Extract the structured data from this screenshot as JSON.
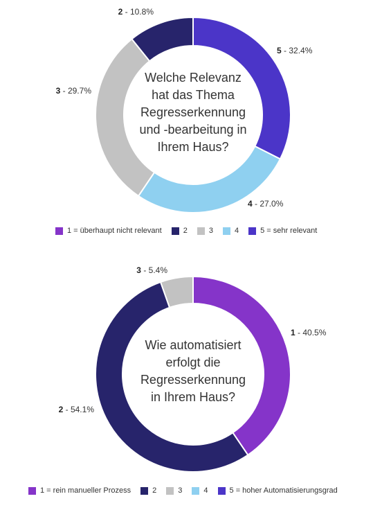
{
  "chart_data": [
    {
      "type": "pie",
      "style": "donut",
      "title": "Welche Relevanz hat das Thema Regresserkennung und -bearbeitung in Ihrem Haus?",
      "title_lines": [
        "Welche Relevanz",
        "hat das Thema",
        "Regresserkennung",
        "und -bearbeitung in",
        "Ihrem Haus?"
      ],
      "slices": [
        {
          "label": "5",
          "value": 32.4,
          "display": "32.4%",
          "color": "#4b35c8"
        },
        {
          "label": "4",
          "value": 27.0,
          "display": "27.0%",
          "color": "#8fd0f0"
        },
        {
          "label": "3",
          "value": 29.7,
          "display": "29.7%",
          "color": "#c2c2c2"
        },
        {
          "label": "2",
          "value": 10.8,
          "display": "10.8%",
          "color": "#27246b"
        }
      ],
      "legend": [
        {
          "label": "1 = überhaupt nicht relevant",
          "color": "#8534c9"
        },
        {
          "label": "2",
          "color": "#27246b"
        },
        {
          "label": "3",
          "color": "#c2c2c2"
        },
        {
          "label": "4",
          "color": "#8fd0f0"
        },
        {
          "label": "5 = sehr relevant",
          "color": "#4b35c8"
        }
      ],
      "legend_placement": "bottom"
    },
    {
      "type": "pie",
      "style": "donut",
      "title": "Wie automatisiert erfolgt die Regresserkennung in Ihrem Haus?",
      "title_lines": [
        "Wie automatisiert",
        "erfolgt die",
        "Regresserkennung",
        "in Ihrem Haus?"
      ],
      "slices": [
        {
          "label": "1",
          "value": 40.5,
          "display": "40.5%",
          "color": "#8534c9"
        },
        {
          "label": "2",
          "value": 54.1,
          "display": "54.1%",
          "color": "#27246b"
        },
        {
          "label": "3",
          "value": 5.4,
          "display": "5.4%",
          "color": "#c2c2c2"
        }
      ],
      "legend": [
        {
          "label": "1 = rein manueller Prozess",
          "color": "#8534c9"
        },
        {
          "label": "2",
          "color": "#27246b"
        },
        {
          "label": "3",
          "color": "#c2c2c2"
        },
        {
          "label": "4",
          "color": "#8fd0f0"
        },
        {
          "label": "5 = hoher Automatisierungsgrad",
          "color": "#4b35c8"
        }
      ],
      "legend_placement": "bottom"
    }
  ]
}
